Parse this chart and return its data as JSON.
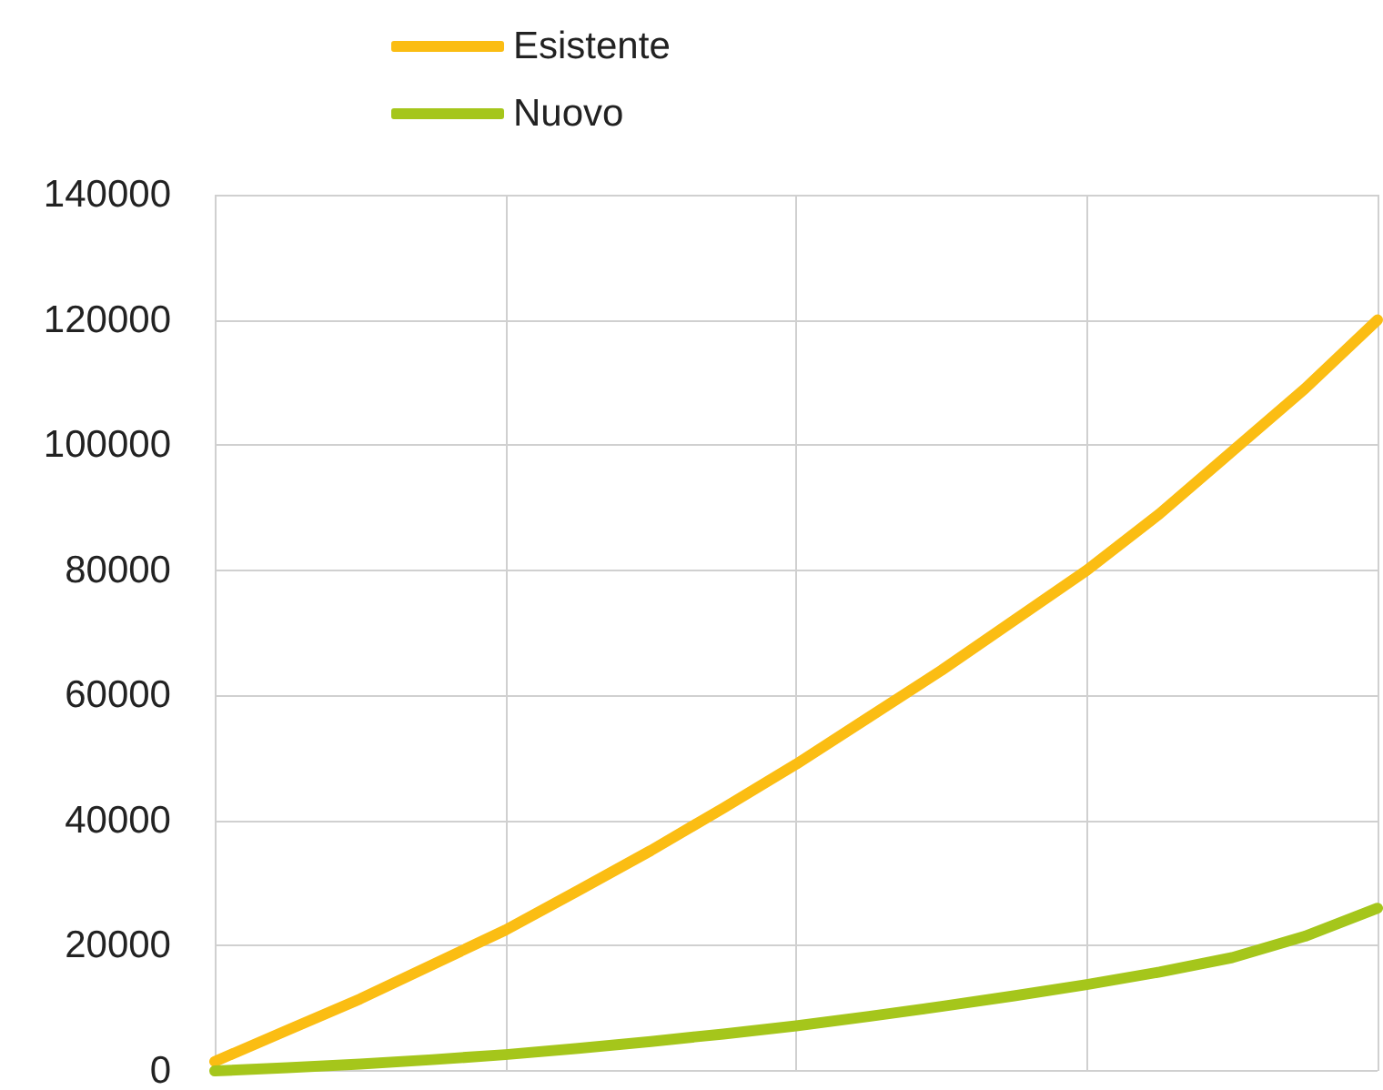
{
  "chart_data": {
    "type": "line",
    "categories": [
      null,
      null,
      null,
      null,
      null,
      null,
      null,
      null,
      null,
      null,
      null,
      null,
      null,
      null,
      null,
      null,
      null
    ],
    "series": [
      {
        "name": "Esistente",
        "color": "#fbbd13",
        "values": [
          1500,
          6500,
          11500,
          17000,
          22500,
          28800,
          35200,
          42000,
          49000,
          56500,
          64000,
          72000,
          80000,
          89000,
          99000,
          109000,
          120000
        ]
      },
      {
        "name": "Nuovo",
        "color": "#a5c61b",
        "values": [
          0,
          500,
          1100,
          1800,
          2600,
          3600,
          4700,
          5900,
          7200,
          8700,
          10300,
          12000,
          13800,
          15800,
          18100,
          21500,
          26000
        ]
      }
    ],
    "ylim": [
      0,
      140000
    ],
    "yticks": [
      0,
      20000,
      40000,
      60000,
      80000,
      100000,
      120000,
      140000
    ],
    "grid": true,
    "legend": "top",
    "marker": "none",
    "line_style": "solid"
  }
}
